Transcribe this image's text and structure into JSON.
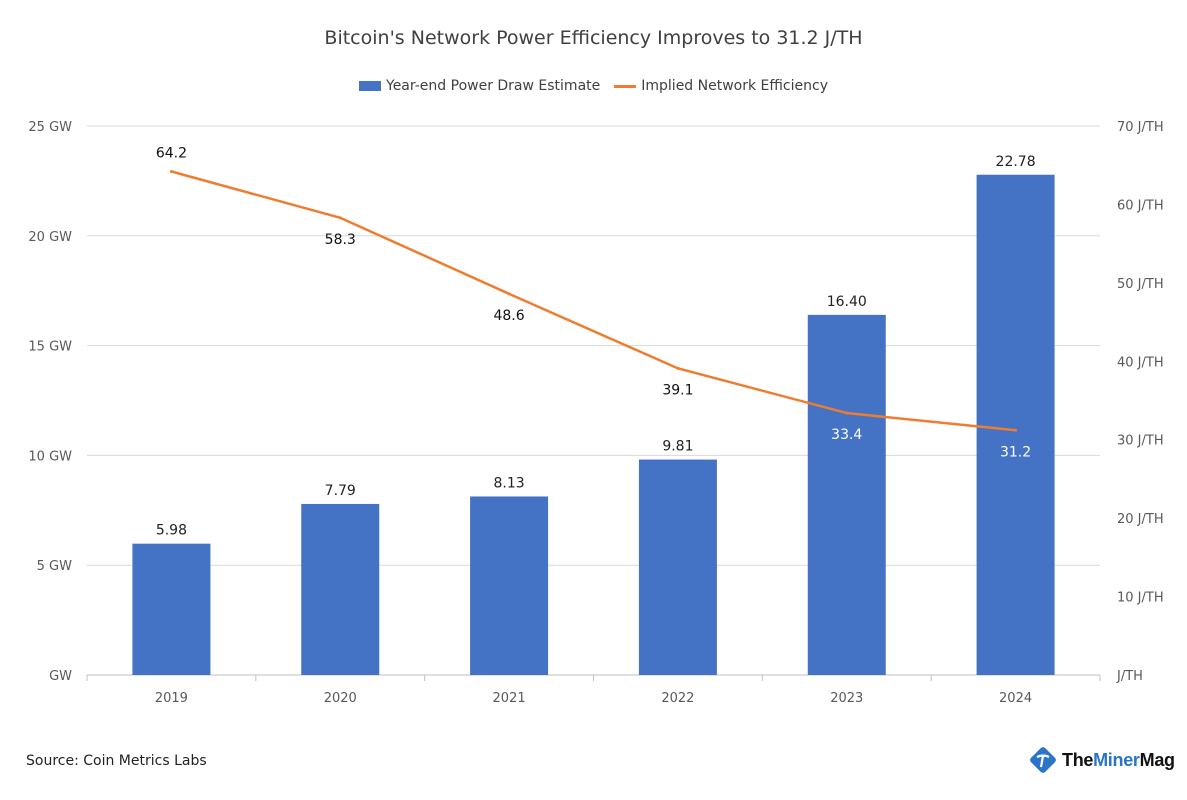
{
  "chart_data": {
    "type": "bar+line",
    "title": "Bitcoin's Network Power Efficiency Improves to 31.2 J/TH",
    "categories": [
      "2019",
      "2020",
      "2021",
      "2022",
      "2023",
      "2024"
    ],
    "series": [
      {
        "name": "Year-end Power Draw Estimate",
        "type": "bar",
        "axis": "left",
        "color": "#4472C4",
        "values": [
          5.98,
          7.79,
          8.13,
          9.81,
          16.4,
          22.78
        ],
        "labels": [
          "5.98",
          "7.79",
          "8.13",
          "9.81",
          "16.40",
          "22.78"
        ]
      },
      {
        "name": "Implied Network Efficiency",
        "type": "line",
        "axis": "right",
        "color": "#ED7D31",
        "values": [
          64.2,
          58.3,
          48.6,
          39.1,
          33.4,
          31.2
        ],
        "labels": [
          "64.2",
          "58.3",
          "48.6",
          "39.1",
          "33.4",
          "31.2"
        ]
      }
    ],
    "left_axis": {
      "ylim": [
        0,
        25
      ],
      "ticks": [
        0,
        5,
        10,
        15,
        20,
        25
      ],
      "tick_labels": [
        "GW",
        "5 GW",
        "10 GW",
        "15 GW",
        "20 GW",
        "25 GW"
      ]
    },
    "right_axis": {
      "ylim": [
        0,
        70
      ],
      "ticks": [
        0,
        10,
        20,
        30,
        40,
        50,
        60,
        70
      ],
      "tick_labels": [
        "J/TH",
        "10 J/TH",
        "20 J/TH",
        "30 J/TH",
        "40 J/TH",
        "50 J/TH",
        "60 J/TH",
        "70 J/TH"
      ]
    },
    "grid": true,
    "legend": "top-center"
  },
  "footer": {
    "source": "Source: Coin Metrics Labs",
    "logo_text_a": "The",
    "logo_text_b": "Miner",
    "logo_text_c": "Mag"
  }
}
